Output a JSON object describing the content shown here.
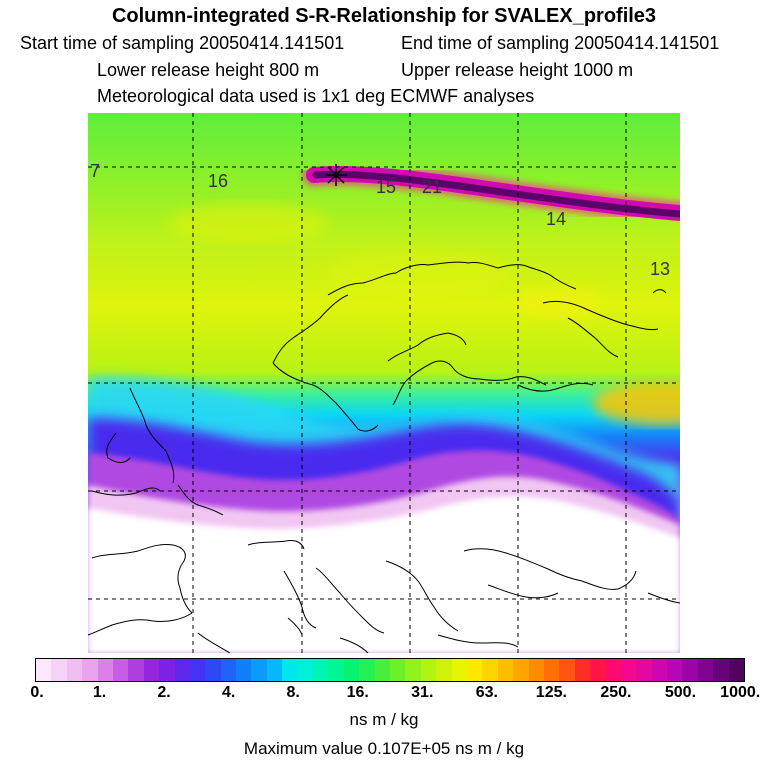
{
  "header": {
    "title": "Column-integrated S-R-Relationship for SVALEX_profile3",
    "start_label": "Start time of sampling 20050414.141501",
    "end_label": "End time of sampling 20050414.141501",
    "lower_label": "Lower release height  800 m",
    "upper_label": "Upper release height 1000 m",
    "met_label": "Meteorological data used is 1x1 deg ECMWF analyses"
  },
  "map": {
    "contour_labels": [
      "7",
      "16",
      "15",
      "21",
      "14",
      "13"
    ]
  },
  "legend": {
    "ticks": [
      "0.",
      "1.",
      "2.",
      "4.",
      "8.",
      "16.",
      "31.",
      "63.",
      "125.",
      "250.",
      "500.",
      "1000."
    ],
    "colors": [
      "#fbe8fb",
      "#f6d3f6",
      "#f0bdf0",
      "#e9a2ec",
      "#dc7fe6",
      "#c65de3",
      "#ad3fe0",
      "#9526de",
      "#7b22e6",
      "#5f26ec",
      "#4433f2",
      "#2e48f5",
      "#1f62f8",
      "#127ffa",
      "#0a9bfb",
      "#06b8fb",
      "#00e8ee",
      "#00f0d6",
      "#00f4b6",
      "#00f692",
      "#05f36f",
      "#25f054",
      "#47ef3b",
      "#6cf02a",
      "#92f21e",
      "#b1f313",
      "#cff20a",
      "#e9f402",
      "#ffe800",
      "#ffd400",
      "#ffbd00",
      "#ffa500",
      "#ff8c00",
      "#ff6f05",
      "#ff5412",
      "#ff2e22",
      "#ff1548",
      "#ff0a6e",
      "#f2098c",
      "#e208a0",
      "#ce07b0",
      "#b706b6",
      "#9b05a8",
      "#80048f",
      "#660378",
      "#52025f"
    ],
    "unit": "ns m / kg",
    "max_value": "Maximum value  0.107E+05 ns m / kg"
  }
}
